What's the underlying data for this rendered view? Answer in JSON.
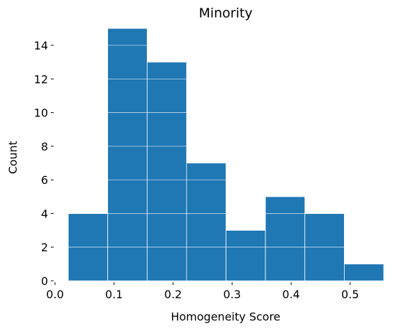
{
  "chart_data": {
    "type": "bar",
    "title": "Minority",
    "xlabel": "Homogeneity Score",
    "ylabel": "Count",
    "bins": [
      {
        "x0": 0.0225,
        "x1": 0.0893,
        "count": 4
      },
      {
        "x0": 0.0893,
        "x1": 0.1561,
        "count": 15
      },
      {
        "x0": 0.1561,
        "x1": 0.2229,
        "count": 13
      },
      {
        "x0": 0.2229,
        "x1": 0.2897,
        "count": 7
      },
      {
        "x0": 0.2897,
        "x1": 0.3565,
        "count": 3
      },
      {
        "x0": 0.3565,
        "x1": 0.4233,
        "count": 5
      },
      {
        "x0": 0.4233,
        "x1": 0.4901,
        "count": 4
      },
      {
        "x0": 0.4901,
        "x1": 0.5569,
        "count": 1
      }
    ],
    "xlim": [
      0.0,
      0.5569
    ],
    "ylim": [
      0,
      15.2
    ],
    "xticks": [
      0.0,
      0.1,
      0.2,
      0.3,
      0.4,
      0.5
    ],
    "xtick_labels": [
      "0.0",
      "0.1",
      "0.2",
      "0.3",
      "0.4",
      "0.5"
    ],
    "yticks": [
      0,
      2,
      4,
      6,
      8,
      10,
      12,
      14
    ],
    "ytick_labels": [
      "0",
      "2",
      "4",
      "6",
      "8",
      "10",
      "12",
      "14"
    ],
    "grid": true,
    "bar_color": "#1f77b4",
    "grid_color": "#ffffff",
    "edge_color": "#ffffff",
    "legend": "none"
  }
}
